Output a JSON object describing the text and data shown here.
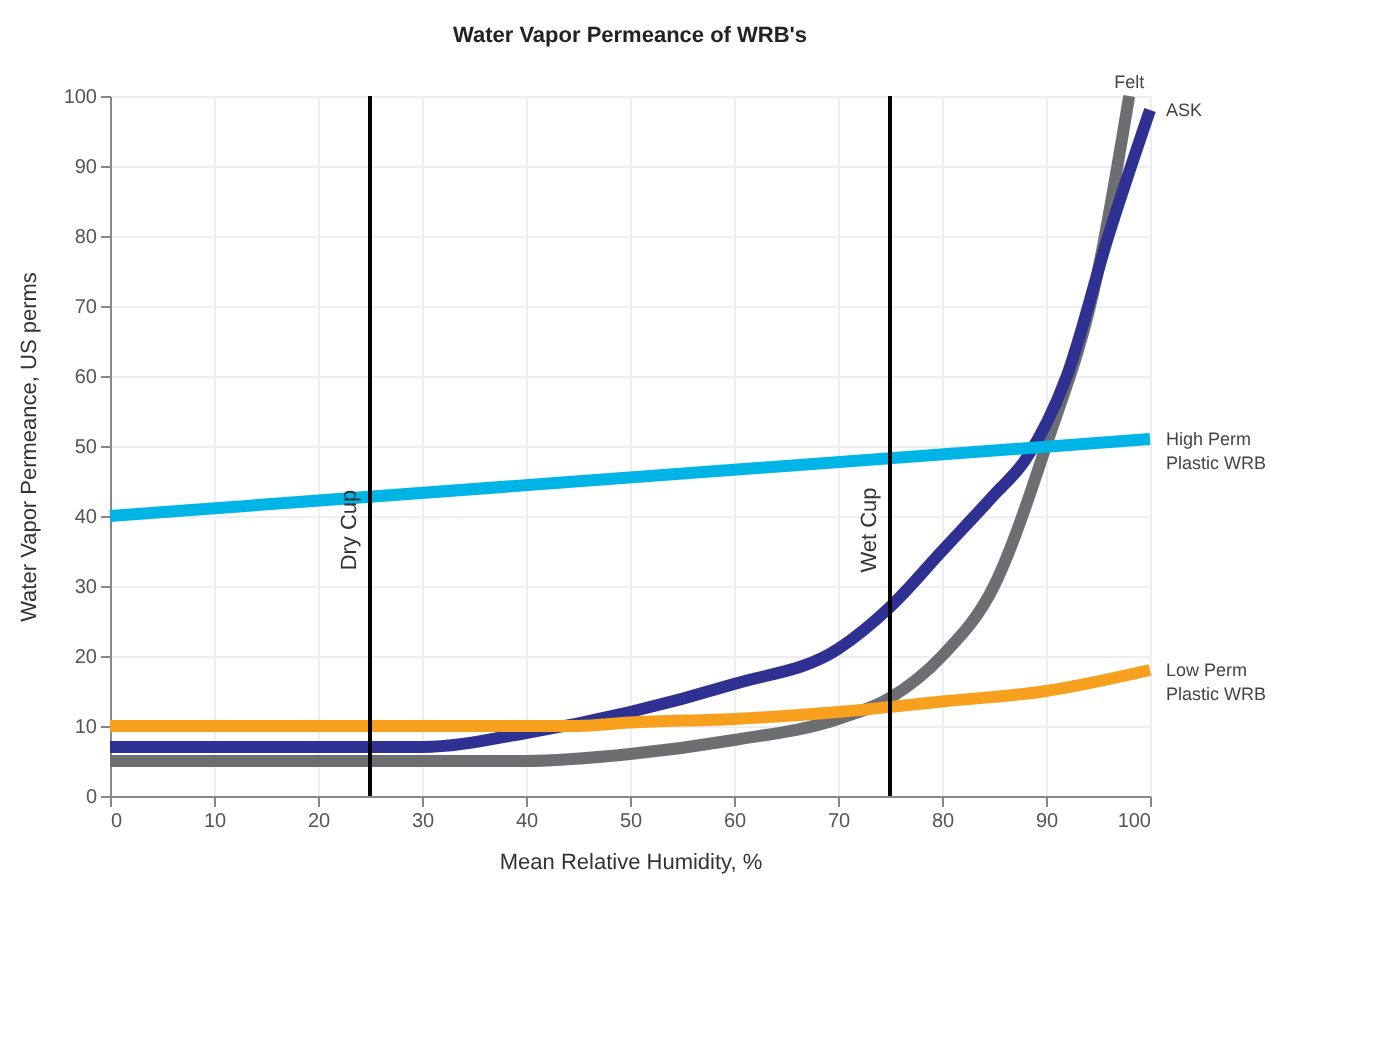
{
  "chart_data": {
    "type": "line",
    "title": "Water Vapor Permeance of WRB's",
    "xlabel": "Mean Relative Humidity, %",
    "ylabel": "Water Vapor Permeance, US perms",
    "xlim": [
      0,
      100
    ],
    "ylim": [
      0,
      100
    ],
    "xticks": [
      0,
      10,
      20,
      30,
      40,
      50,
      60,
      70,
      80,
      90,
      100
    ],
    "yticks": [
      0,
      10,
      20,
      30,
      40,
      50,
      60,
      70,
      80,
      90,
      100
    ],
    "grid": true,
    "legend": false,
    "marker": "none",
    "line_style": "solid",
    "series": [
      {
        "name": "Felt",
        "color": "#6d6e71",
        "x": [
          0,
          20,
          40,
          50,
          60,
          70,
          75,
          80,
          85,
          90,
          95,
          98
        ],
        "values": [
          5,
          5,
          5,
          6,
          8,
          11,
          14,
          20,
          30,
          50,
          75,
          100
        ]
      },
      {
        "name": "ASK",
        "color": "#2e3192",
        "x": [
          0,
          20,
          30,
          40,
          50,
          60,
          70,
          75,
          80,
          85,
          88,
          92,
          96,
          100
        ],
        "values": [
          7,
          7,
          7,
          9,
          12,
          16,
          21,
          27,
          35,
          43,
          48,
          60,
          80,
          98
        ]
      },
      {
        "name": "High Perm Plastic WRB",
        "color": "#00b4e6",
        "x": [
          0,
          100
        ],
        "values": [
          40,
          51
        ]
      },
      {
        "name": "Low Perm Plastic WRB",
        "color": "#f7a01d",
        "x": [
          0,
          20,
          45,
          50,
          60,
          70,
          80,
          90,
          100
        ],
        "values": [
          10,
          10,
          10,
          10.5,
          11,
          12,
          13.5,
          15,
          18
        ]
      }
    ],
    "ref_lines": [
      {
        "axis": "x",
        "value": 25,
        "label": "Dry Cup",
        "color": "#000000"
      },
      {
        "axis": "x",
        "value": 75,
        "label": "Wet Cup",
        "color": "#000000"
      }
    ]
  }
}
